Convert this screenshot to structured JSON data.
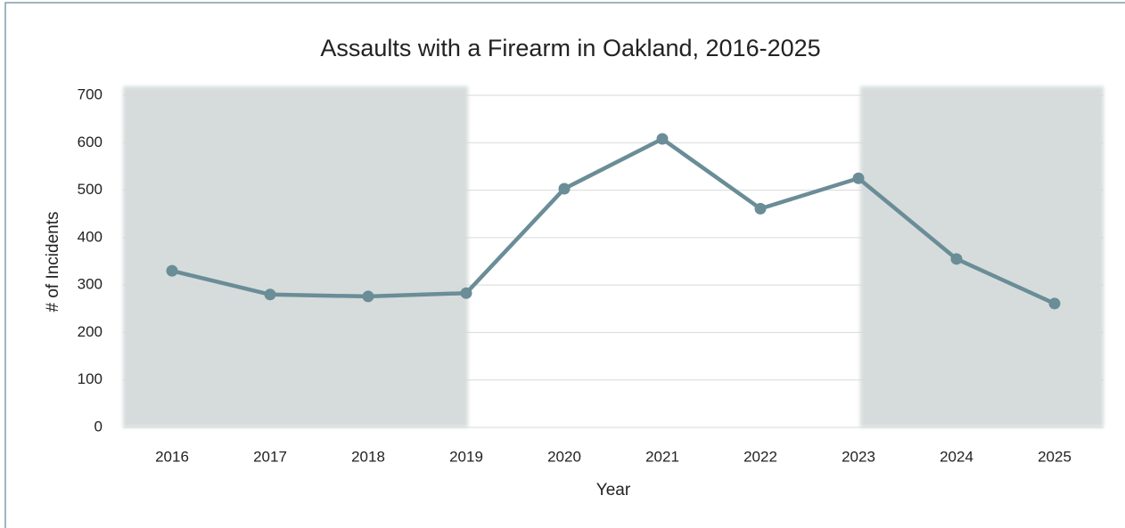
{
  "chart_data": {
    "type": "line",
    "title": "Assaults with a Firearm in Oakland, 2016-2025",
    "x_label": "Year",
    "y_label": "# of Incidents",
    "categories": [
      "2016",
      "2017",
      "2018",
      "2019",
      "2020",
      "2021",
      "2022",
      "2023",
      "2024",
      "2025"
    ],
    "series": [
      {
        "name": "Assaults with a Firearm",
        "color": "#6a8d97",
        "values": [
          330,
          280,
          276,
          283,
          503,
          608,
          461,
          525,
          355,
          261
        ]
      }
    ],
    "ylim": [
      0,
      700
    ],
    "yticks": [
      0,
      100,
      200,
      300,
      400,
      500,
      600,
      700
    ],
    "grid": true
  }
}
